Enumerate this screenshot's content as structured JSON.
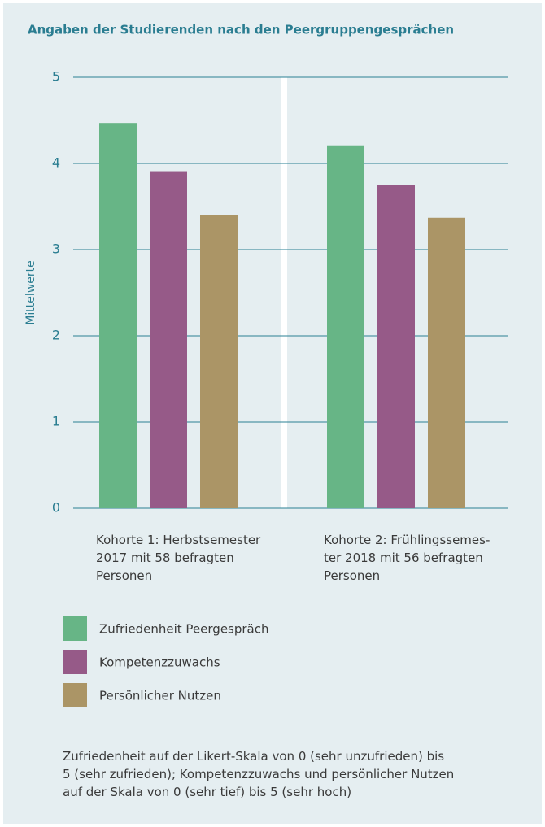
{
  "chart_data": {
    "type": "bar",
    "title": "Angaben der Studierenden nach den Peergruppengesprächen",
    "ylabel": "Mittelwerte",
    "categories": [
      "Kohorte 1: Herbstsemester\n2017 mit 58 befragten\nPersonen",
      "Kohorte 2: Frühlingssemes-\nter 2018 mit 56 befragten\nPersonen"
    ],
    "series": [
      {
        "name": "Zufriedenheit Peergespräch",
        "color": "#67b586",
        "values": [
          4.47,
          4.21
        ]
      },
      {
        "name": "Kompetenzzuwachs",
        "color": "#965a88",
        "values": [
          3.91,
          3.75
        ]
      },
      {
        "name": "Persönlicher Nutzen",
        "color": "#ab9566",
        "values": [
          3.4,
          3.37
        ]
      }
    ],
    "ylim": [
      0,
      5
    ],
    "yticks": [
      0,
      1,
      2,
      3,
      4,
      5
    ],
    "grid": true,
    "note": "Zufriedenheit auf der Likert-Skala von 0 (sehr unzufrieden) bis\n5 (sehr zufrieden); Kompetenzzuwachs und persönlicher Nutzen\nauf der Skala von 0 (sehr tief) bis 5 (sehr hoch)"
  }
}
